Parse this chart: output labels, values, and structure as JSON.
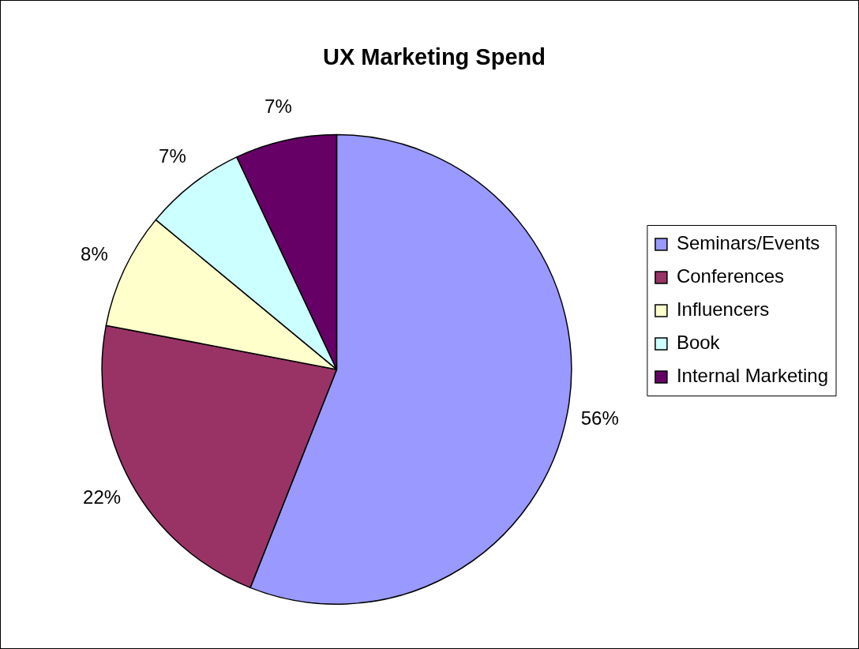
{
  "chart_data": {
    "type": "pie",
    "title": "UX Marketing Spend",
    "categories": [
      "Seminars/Events",
      "Conferences",
      "Influencers",
      "Book",
      "Internal Marketing"
    ],
    "values": [
      56,
      22,
      8,
      7,
      7
    ],
    "colors": [
      "#9999ff",
      "#993366",
      "#ffffcc",
      "#ccffff",
      "#660066"
    ],
    "value_labels": [
      "56%",
      "22%",
      "8%",
      "7%",
      "7%"
    ],
    "legend": "right"
  }
}
